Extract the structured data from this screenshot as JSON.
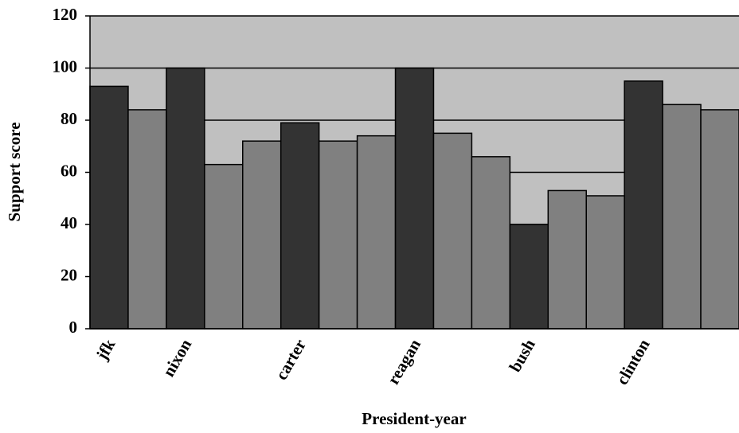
{
  "chart_data": {
    "type": "bar",
    "x_label": "President-year",
    "y_label": "Support score",
    "categories": [
      "jfk",
      null,
      "nixon",
      null,
      null,
      "carter",
      null,
      null,
      "reagan",
      null,
      null,
      "bush",
      null,
      null,
      "clinton",
      null,
      null
    ],
    "values": [
      93,
      84,
      100,
      63,
      72,
      79,
      72,
      74,
      100,
      75,
      66,
      40,
      53,
      51,
      95,
      86,
      84
    ],
    "colors": [
      "#333333",
      "#808080",
      "#333333",
      "#808080",
      "#808080",
      "#333333",
      "#808080",
      "#808080",
      "#333333",
      "#808080",
      "#808080",
      "#333333",
      "#808080",
      "#808080",
      "#333333",
      "#808080",
      "#808080"
    ],
    "ylim": [
      0,
      120
    ],
    "yticks": [
      0,
      20,
      40,
      60,
      80,
      100,
      120
    ],
    "grid": true,
    "background": "#c0c0c0"
  }
}
